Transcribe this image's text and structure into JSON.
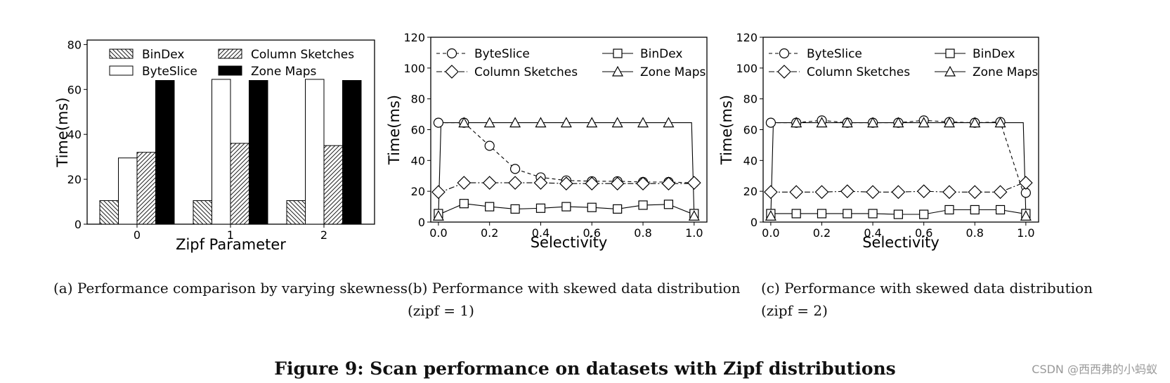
{
  "figure_title": "Figure 9: Scan performance on datasets with Zipf distributions",
  "watermark": "CSDN @西西弗的小蚂蚁",
  "captions": {
    "a": "(a) Performance comparison by varying skewness",
    "b_line1": "(b) Performance with skewed data distribution",
    "b_line2": "(zipf = 1)",
    "c_line1": "(c) Performance with skewed data distribution",
    "c_line2": "(zipf = 2)"
  },
  "chart_data": [
    {
      "type": "bar",
      "xlabel": "Zipf Parameter",
      "ylabel": "Time(ms)",
      "categories": [
        "0",
        "1",
        "2"
      ],
      "ylim": [
        0,
        82
      ],
      "yticks": [
        0,
        20,
        40,
        60,
        80
      ],
      "legend_position": "top",
      "series": [
        {
          "name": "BinDex",
          "values": [
            10.5,
            10.5,
            10.5
          ],
          "fill": "hatch-back"
        },
        {
          "name": "ByteSlice",
          "values": [
            29.5,
            64.5,
            64.5
          ],
          "fill": "white"
        },
        {
          "name": "Column Sketches",
          "values": [
            32,
            36,
            35
          ],
          "fill": "hatch-fwd"
        },
        {
          "name": "Zone Maps",
          "values": [
            64,
            64,
            64
          ],
          "fill": "black"
        }
      ],
      "legend_order": [
        "BinDex",
        "Column Sketches",
        "ByteSlice",
        "Zone Maps"
      ]
    },
    {
      "type": "line",
      "xlabel": "Selectivity",
      "ylabel": "Time(ms)",
      "x": [
        0,
        0.01,
        0.1,
        0.2,
        0.3,
        0.4,
        0.5,
        0.6,
        0.7,
        0.8,
        0.9,
        0.99,
        1.0
      ],
      "xlim": [
        -0.03,
        1.05
      ],
      "ylim": [
        0,
        120
      ],
      "xticks": [
        0.0,
        0.2,
        0.4,
        0.6,
        0.8,
        1.0
      ],
      "yticks": [
        0,
        20,
        40,
        60,
        80,
        100,
        120
      ],
      "legend_position": "top",
      "series": [
        {
          "name": "ByteSlice",
          "marker": "circle",
          "dash": "dashed",
          "values": [
            64.5,
            64.5,
            64.5,
            49.5,
            34.5,
            29,
            27,
            26.5,
            26.5,
            26,
            26,
            25.5,
            25.5
          ]
        },
        {
          "name": "Column Sketches",
          "marker": "diamond",
          "dash": "dashdot",
          "values": [
            19.5,
            19.5,
            25.5,
            25.5,
            25.5,
            25.5,
            25,
            25,
            25,
            25,
            25,
            25,
            25.5
          ]
        },
        {
          "name": "BinDex",
          "marker": "square",
          "dash": "solid",
          "values": [
            5.5,
            5.5,
            12,
            10,
            8.5,
            9,
            10,
            9.5,
            8.5,
            11,
            11.5,
            5.5,
            5.5
          ]
        },
        {
          "name": "Zone Maps",
          "marker": "triangle",
          "dash": "solid",
          "values": [
            4,
            64.5,
            64.5,
            64.5,
            64.5,
            64.5,
            64.5,
            64.5,
            64.5,
            64.5,
            64.5,
            64.5,
            4
          ]
        }
      ]
    },
    {
      "type": "line",
      "xlabel": "Selectivity",
      "ylabel": "Time(ms)",
      "x": [
        0,
        0.01,
        0.1,
        0.2,
        0.3,
        0.4,
        0.5,
        0.6,
        0.7,
        0.8,
        0.9,
        0.99,
        1.0
      ],
      "xlim": [
        -0.03,
        1.05
      ],
      "ylim": [
        0,
        120
      ],
      "xticks": [
        0.0,
        0.2,
        0.4,
        0.6,
        0.8,
        1.0
      ],
      "yticks": [
        0,
        20,
        40,
        60,
        80,
        100,
        120
      ],
      "legend_position": "top",
      "series": [
        {
          "name": "ByteSlice",
          "marker": "circle",
          "dash": "dashed",
          "values": [
            64.5,
            64.5,
            64.5,
            66,
            64.5,
            64.5,
            64.5,
            66,
            65,
            64.5,
            65,
            19,
            19
          ]
        },
        {
          "name": "Column Sketches",
          "marker": "diamond",
          "dash": "dashdot",
          "values": [
            19.5,
            19.5,
            19.5,
            19.5,
            20,
            19.5,
            19.5,
            20,
            19.5,
            19.5,
            19.5,
            25.5,
            25.5
          ]
        },
        {
          "name": "BinDex",
          "marker": "square",
          "dash": "solid",
          "values": [
            5.5,
            5.5,
            5.5,
            5.5,
            5.5,
            5.5,
            5,
            5,
            8,
            8,
            8,
            5.5,
            5.5
          ]
        },
        {
          "name": "Zone Maps",
          "marker": "triangle",
          "dash": "solid",
          "values": [
            4,
            64.5,
            64.5,
            64.5,
            64.5,
            64.5,
            64.5,
            64.5,
            64.5,
            64.5,
            64.5,
            64.5,
            4
          ]
        }
      ]
    }
  ]
}
